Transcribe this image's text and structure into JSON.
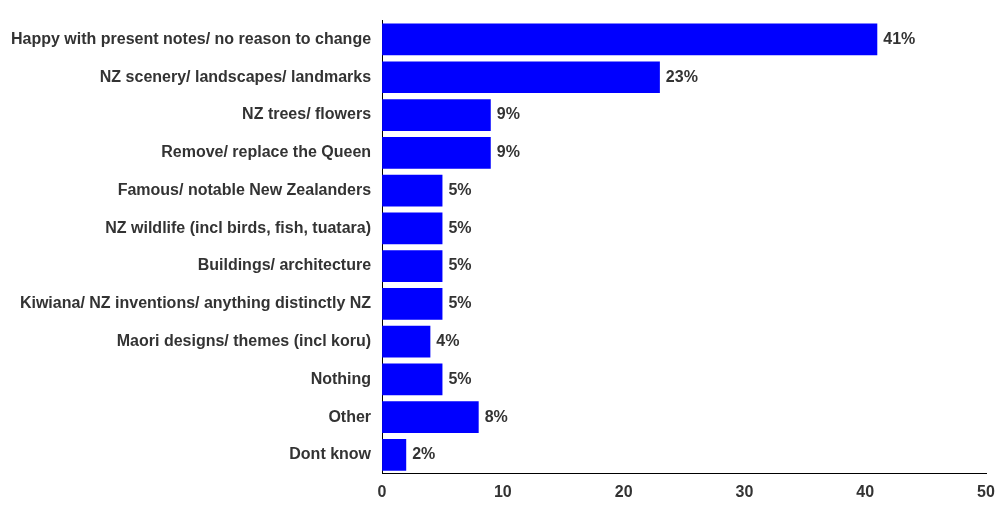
{
  "chart_data": {
    "type": "bar",
    "orientation": "horizontal",
    "categories": [
      "Happy with present notes/ no reason to change",
      "NZ scenery/ landscapes/ landmarks",
      "NZ trees/ flowers",
      "Remove/ replace the Queen",
      "Famous/ notable New Zealanders",
      "NZ wildlife (incl birds, fish, tuatara)",
      "Buildings/ architecture",
      "Kiwiana/ NZ inventions/ anything distinctly NZ",
      "Maori designs/ themes (incl koru)",
      "Nothing",
      "Other",
      "Dont know"
    ],
    "values": [
      41,
      23,
      9,
      9,
      5,
      5,
      5,
      5,
      4,
      5,
      8,
      2
    ],
    "value_labels": [
      "41%",
      "23%",
      "9%",
      "9%",
      "5%",
      "5%",
      "5%",
      "5%",
      "4%",
      "5%",
      "8%",
      "2%"
    ],
    "color": "#0000ff",
    "xlim": [
      0,
      50
    ],
    "xticks": [
      0,
      10,
      20,
      30,
      40,
      50
    ],
    "grid": false,
    "legend": false
  }
}
